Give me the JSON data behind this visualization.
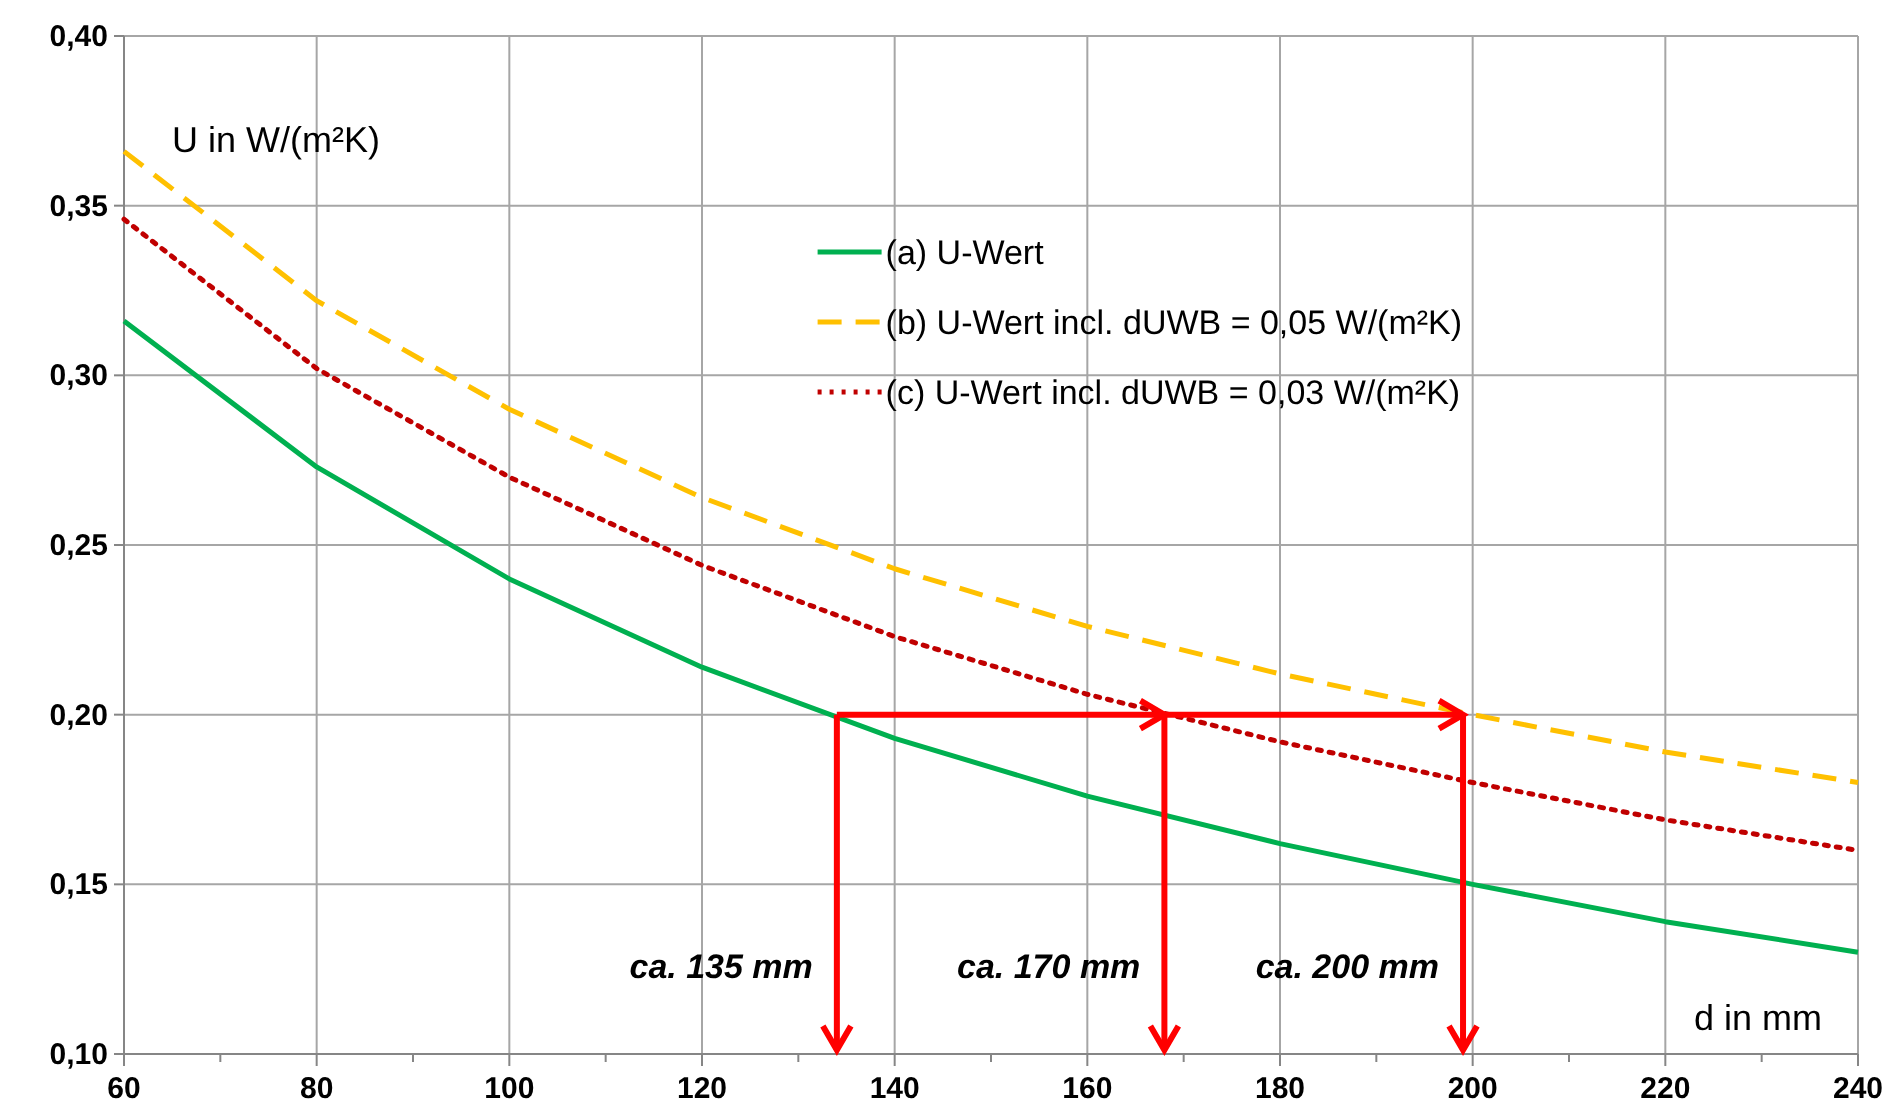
{
  "chart_data": {
    "type": "line",
    "xlabel": "d in mm",
    "ylabel": "U in W/(m²K)",
    "x": [
      60,
      80,
      100,
      120,
      140,
      160,
      180,
      200,
      220,
      240
    ],
    "series": [
      {
        "name": "(a) U-Wert",
        "color": "#00b050",
        "line_style": "solid",
        "values": [
          0.316,
          0.273,
          0.24,
          0.214,
          0.193,
          0.176,
          0.162,
          0.15,
          0.139,
          0.13
        ]
      },
      {
        "name": "(b) U-Wert incl. dUWB = 0,05 W/(m²K)",
        "color": "#ffc000",
        "line_style": "dashed",
        "values": [
          0.366,
          0.322,
          0.29,
          0.264,
          0.243,
          0.226,
          0.212,
          0.2,
          0.189,
          0.18
        ]
      },
      {
        "name": "(c) U-Wert incl. dUWB = 0,03 W/(m²K)",
        "color": "#c00000",
        "line_style": "dotted",
        "values": [
          0.346,
          0.302,
          0.27,
          0.244,
          0.223,
          0.206,
          0.192,
          0.18,
          0.169,
          0.16
        ]
      }
    ],
    "xlim": [
      60,
      240
    ],
    "ylim": [
      0.1,
      0.4
    ],
    "xticks": [
      60,
      {
        "value": 70,
        "label": null
      },
      80,
      {
        "value": 90,
        "label": null
      },
      100,
      {
        "value": 110,
        "label": null
      },
      120,
      {
        "value": 130,
        "label": null
      },
      140,
      {
        "value": 150,
        "label": null
      },
      160,
      {
        "value": 170,
        "label": null
      },
      180,
      {
        "value": 190,
        "label": null
      },
      200,
      {
        "value": 210,
        "label": null
      },
      220,
      {
        "value": 230,
        "label": null
      },
      240
    ],
    "yticks": [
      {
        "value": 0.1,
        "label": "0,10"
      },
      {
        "value": 0.15,
        "label": "0,15"
      },
      {
        "value": 0.2,
        "label": "0,20"
      },
      {
        "value": 0.25,
        "label": "0,25"
      },
      {
        "value": 0.3,
        "label": "0,30"
      },
      {
        "value": 0.35,
        "label": "0,35"
      },
      {
        "value": 0.4,
        "label": "0,40"
      }
    ],
    "ref_lines": [
      {
        "axis": "y",
        "value": 0.2,
        "color": "#ff0000"
      },
      {
        "axis": "x",
        "value": 134,
        "label": "ca. 135 mm",
        "color": "#ff0000"
      },
      {
        "axis": "x",
        "value": 168,
        "label": "ca. 170 mm",
        "color": "#ff0000"
      },
      {
        "axis": "x",
        "value": 199,
        "label": "ca. 200 mm",
        "color": "#ff0000"
      }
    ],
    "grid": true,
    "legend": "top right",
    "marker": "none"
  }
}
